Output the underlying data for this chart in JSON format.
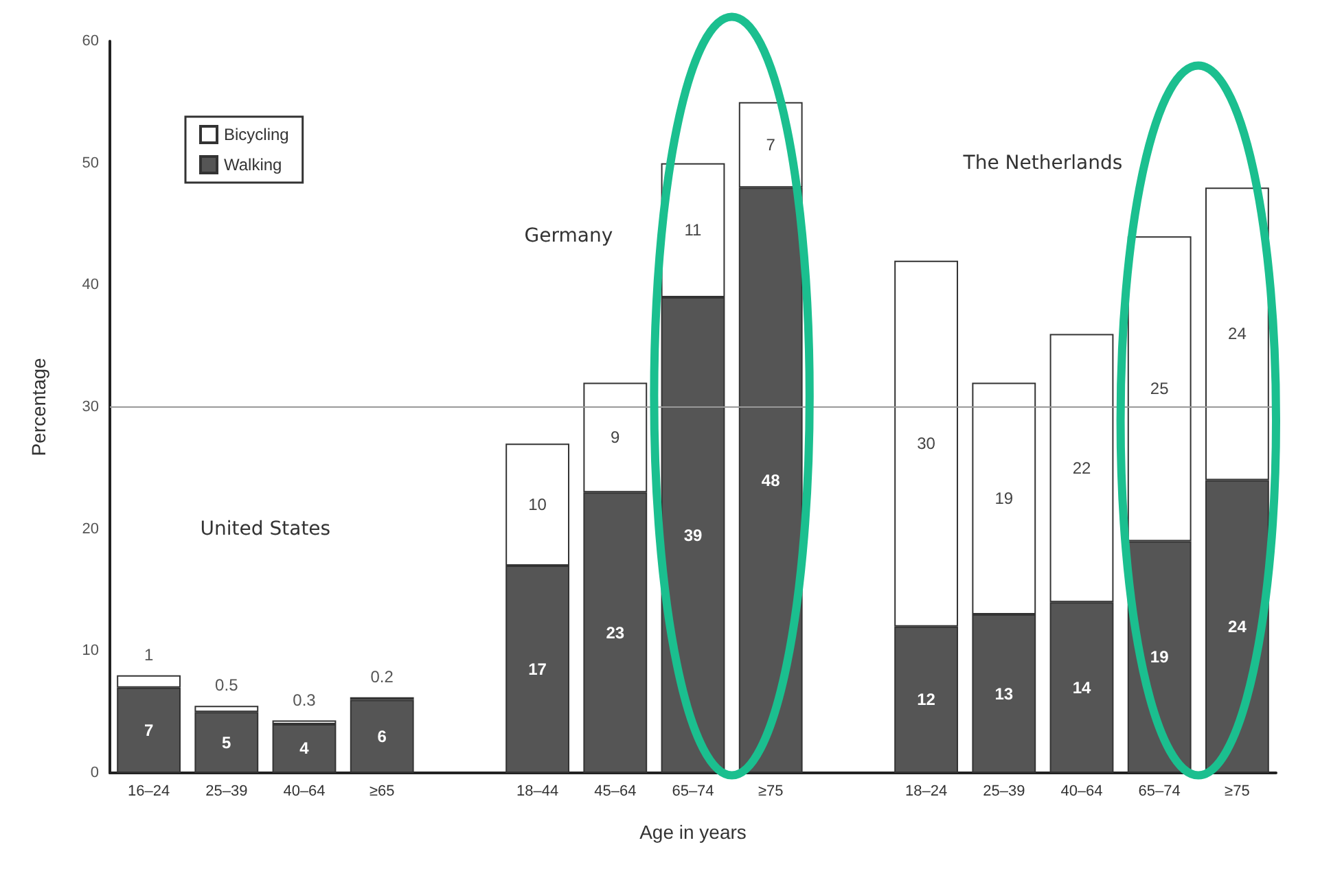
{
  "chart_data": {
    "type": "bar",
    "stacked": true,
    "xlabel": "Age in years",
    "ylabel": "Percentage",
    "categories": [
      "16–24",
      "25–39",
      "40–64",
      "≥65",
      null,
      "18–44",
      "45–64",
      "65–74",
      "≥75",
      null,
      "18–24",
      "25–39",
      "40–64",
      "65–74",
      "≥75"
    ],
    "series": [
      {
        "name": "Walking",
        "color": "#555555",
        "values": [
          7,
          5,
          4,
          6,
          null,
          17,
          23,
          39,
          48,
          null,
          12,
          13,
          14,
          19,
          24
        ]
      },
      {
        "name": "Bicycling",
        "color": "#ffffff",
        "values": [
          1,
          0.5,
          0.3,
          0.2,
          null,
          10,
          9,
          11,
          7,
          null,
          30,
          19,
          22,
          25,
          24
        ]
      }
    ],
    "ylim": [
      0,
      60
    ],
    "yticks": [
      0,
      10,
      20,
      30,
      40,
      50,
      60
    ],
    "data_labels": true,
    "grid": false,
    "legend": "top left",
    "ref_lines": [
      {
        "axis": "y",
        "value": 30,
        "color": "#999999"
      }
    ],
    "annotations": [
      "United States",
      "Germany",
      "The Netherlands"
    ]
  }
}
